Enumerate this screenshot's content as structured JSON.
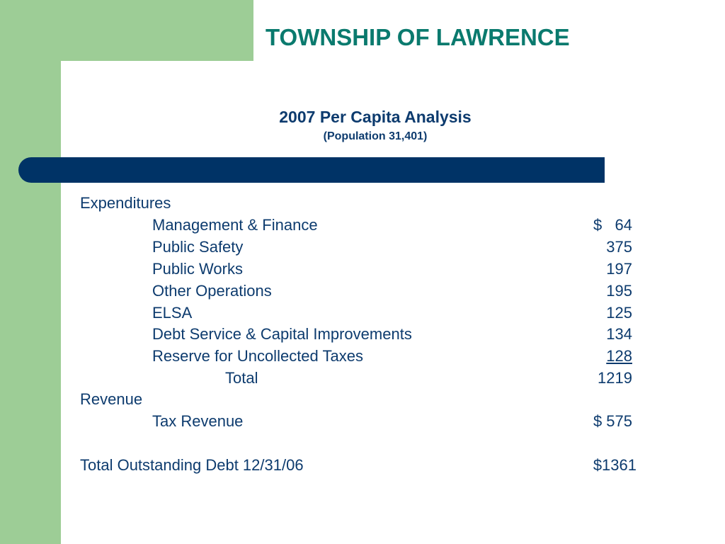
{
  "title": "TOWNSHIP OF LAWRENCE",
  "subtitle": "2007 Per Capita Analysis",
  "population": "(Population 31,401)",
  "expenditures": {
    "heading": "Expenditures",
    "items": [
      {
        "label": "Management & Finance",
        "amount": "$   64"
      },
      {
        "label": "Public Safety",
        "amount": "375"
      },
      {
        "label": "Public Works",
        "amount": "197"
      },
      {
        "label": "Other Operations",
        "amount": "195"
      },
      {
        "label": "ELSA",
        "amount": "125"
      },
      {
        "label": "Debt Service & Capital Improvements",
        "amount": "134"
      },
      {
        "label": "Reserve for Uncollected Taxes",
        "amount": "128"
      }
    ],
    "total_label": "Total",
    "total_amount": "1219"
  },
  "revenue": {
    "heading": "Revenue",
    "tax_label": "Tax Revenue",
    "tax_amount": "$ 575"
  },
  "debt": {
    "label": "Total Outstanding Debt 12/31/06",
    "amount": "$1361"
  },
  "colors": {
    "green": "#9dcd96",
    "title_teal": "#0a7a6e",
    "navy_bar": "#003366",
    "text_navy": "#0d3b6e"
  }
}
